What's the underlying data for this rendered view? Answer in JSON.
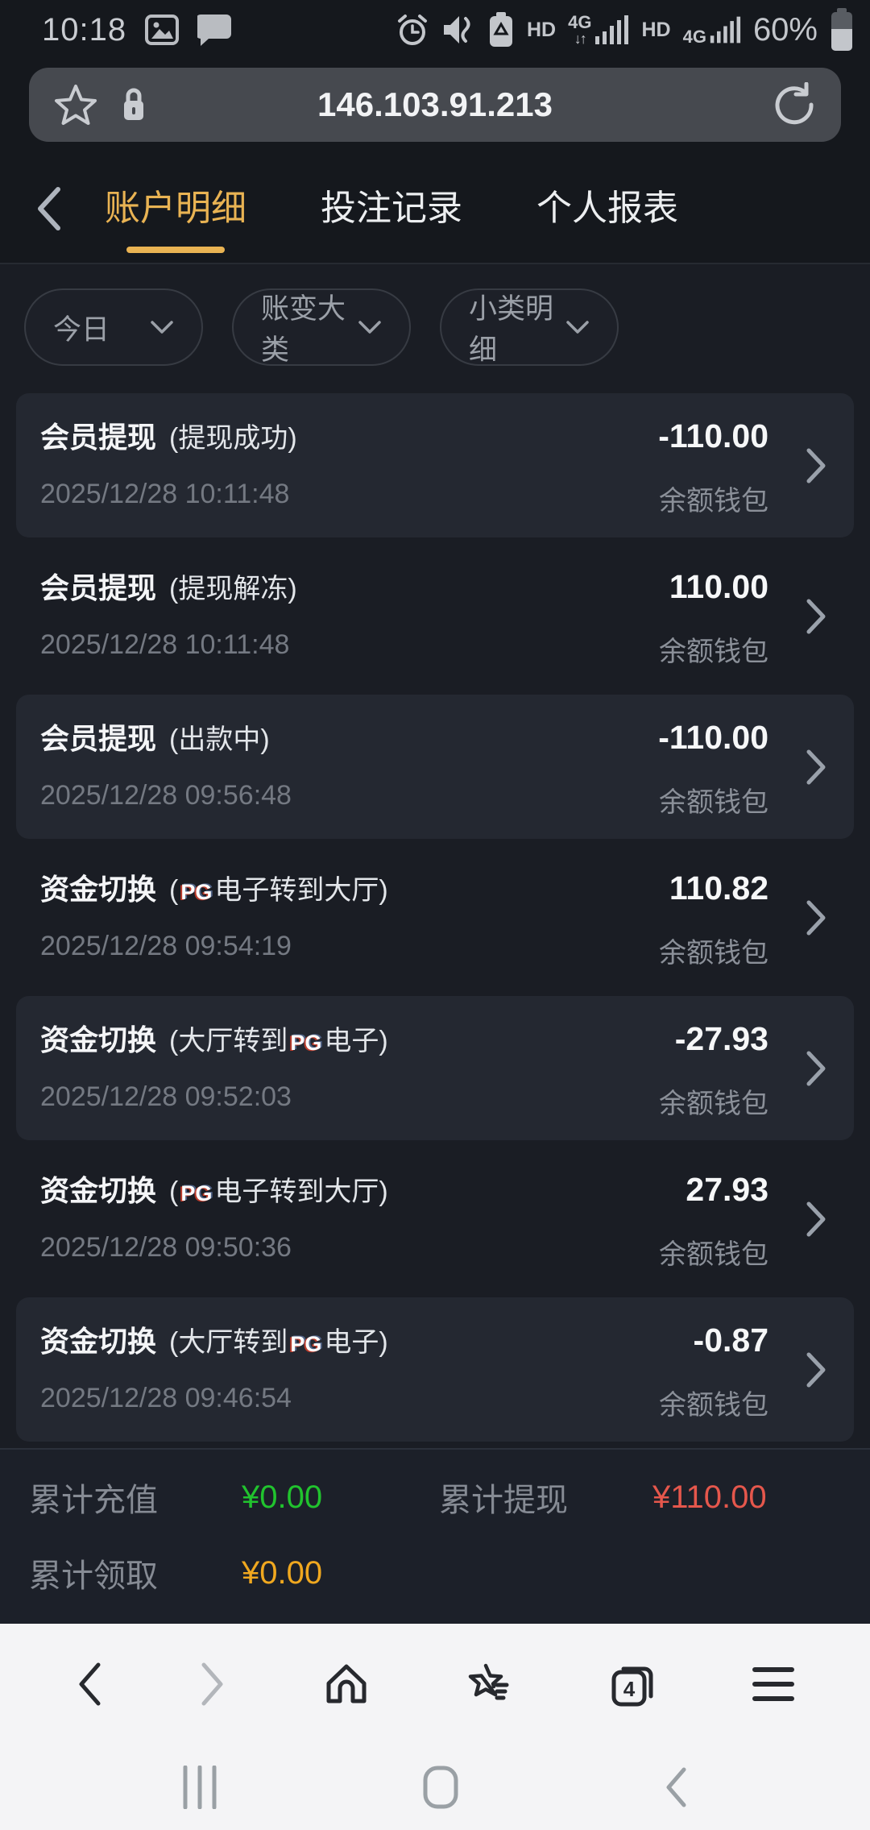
{
  "status_bar": {
    "time": "10:18",
    "hd1": "HD",
    "hd2": "HD",
    "net1_label": "4G",
    "net1_arrows": "↓↑",
    "net2_label": "4G",
    "battery_percent": "60%"
  },
  "url_bar": {
    "url": "146.103.91.213"
  },
  "tab_bar": {
    "tabs": [
      {
        "label": "账户明细",
        "active": true
      },
      {
        "label": "投注记录",
        "active": false
      },
      {
        "label": "个人报表",
        "active": false
      }
    ]
  },
  "filters": [
    {
      "label": "今日"
    },
    {
      "label": "账变大类"
    },
    {
      "label": "小类明细"
    }
  ],
  "transactions": [
    {
      "title": "会员提现",
      "note": [
        {
          "t": "text",
          "v": "(提现成功)"
        }
      ],
      "amount": "-110.00",
      "date": "2025/12/28 10:11:48",
      "wallet": "余额钱包",
      "highlight": true
    },
    {
      "title": "会员提现",
      "note": [
        {
          "t": "text",
          "v": "(提现解冻)"
        }
      ],
      "amount": "110.00",
      "date": "2025/12/28 10:11:48",
      "wallet": "余额钱包",
      "highlight": false
    },
    {
      "title": "会员提现",
      "note": [
        {
          "t": "text",
          "v": "(出款中)"
        }
      ],
      "amount": "-110.00",
      "date": "2025/12/28 09:56:48",
      "wallet": "余额钱包",
      "highlight": true
    },
    {
      "title": "资金切换",
      "note": [
        {
          "t": "text",
          "v": "("
        },
        {
          "t": "pg",
          "v": "PG"
        },
        {
          "t": "text",
          "v": "电子转到大厅)"
        }
      ],
      "amount": "110.82",
      "date": "2025/12/28 09:54:19",
      "wallet": "余额钱包",
      "highlight": false
    },
    {
      "title": "资金切换",
      "note": [
        {
          "t": "text",
          "v": "(大厅转到"
        },
        {
          "t": "pg",
          "v": "PG"
        },
        {
          "t": "text",
          "v": "电子)"
        }
      ],
      "amount": "-27.93",
      "date": "2025/12/28 09:52:03",
      "wallet": "余额钱包",
      "highlight": true
    },
    {
      "title": "资金切换",
      "note": [
        {
          "t": "text",
          "v": "("
        },
        {
          "t": "pg",
          "v": "PG"
        },
        {
          "t": "text",
          "v": "电子转到大厅)"
        }
      ],
      "amount": "27.93",
      "date": "2025/12/28 09:50:36",
      "wallet": "余额钱包",
      "highlight": false
    },
    {
      "title": "资金切换",
      "note": [
        {
          "t": "text",
          "v": "(大厅转到"
        },
        {
          "t": "pg",
          "v": "PG"
        },
        {
          "t": "text",
          "v": "电子)"
        }
      ],
      "amount": "-0.87",
      "date": "2025/12/28 09:46:54",
      "wallet": "余额钱包",
      "highlight": true
    }
  ],
  "summary": {
    "cells": [
      {
        "label": "累计充值",
        "value": "¥0.00",
        "color": "green"
      },
      {
        "label": "累计提现",
        "value": "¥110.00",
        "color": "red"
      },
      {
        "label": "累计领取",
        "value": "¥0.00",
        "color": "orange"
      }
    ]
  },
  "browser_bar": {
    "tab_count": "4"
  },
  "colors": {
    "accent_gold": "#e9b353",
    "positive_green": "#21c32e",
    "negative_red": "#e5574c",
    "bonus_orange": "#f0a81f",
    "header_bg": "#15181d",
    "content_bg": "#1a1d24",
    "card_bg": "#242831",
    "toolbar_bg": "#f4f4f6"
  }
}
